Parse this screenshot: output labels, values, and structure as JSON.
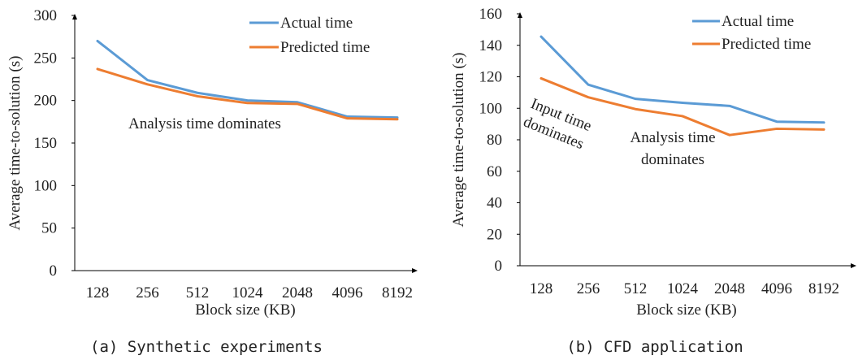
{
  "chart_data": [
    {
      "type": "line",
      "caption": "(a) Synthetic experiments",
      "xlabel": "Block size (KB)",
      "ylabel": "Average time-to-solution (s)",
      "categories": [
        "128",
        "256",
        "512",
        "1024",
        "2048",
        "4096",
        "8192"
      ],
      "ylim": [
        0,
        300
      ],
      "yticks": [
        0,
        50,
        100,
        150,
        200,
        250,
        300
      ],
      "grid": false,
      "legend_position": "top-right",
      "series": [
        {
          "name": "Actual time",
          "color": "#5b9bd5",
          "values": [
            270,
            224,
            209,
            200,
            198,
            181,
            180
          ]
        },
        {
          "name": "Predicted time",
          "color": "#ed7d31",
          "values": [
            237,
            219,
            205,
            197,
            196,
            179,
            178
          ]
        }
      ],
      "annotations": [
        {
          "text": "Analysis time dominates"
        }
      ]
    },
    {
      "type": "line",
      "caption": "(b) CFD application",
      "xlabel": "Block size (KB)",
      "ylabel": "Average time-to-solution (s)",
      "categories": [
        "128",
        "256",
        "512",
        "1024",
        "2048",
        "4096",
        "8192"
      ],
      "ylim": [
        0,
        160
      ],
      "yticks": [
        0,
        20,
        40,
        60,
        80,
        100,
        120,
        140,
        160
      ],
      "grid": false,
      "legend_position": "top-right",
      "series": [
        {
          "name": "Actual time",
          "color": "#5b9bd5",
          "values": [
            145.5,
            115,
            106,
            103.5,
            101.5,
            91.5,
            91
          ]
        },
        {
          "name": "Predicted time",
          "color": "#ed7d31",
          "values": [
            119,
            107,
            99.5,
            95,
            83,
            87,
            86.5
          ]
        }
      ],
      "annotations": [
        {
          "text": "Input time dominates",
          "lines": [
            "Input time",
            "dominates"
          ]
        },
        {
          "text": "Analysis time dominates",
          "lines": [
            "Analysis time",
            "dominates"
          ]
        }
      ]
    }
  ]
}
